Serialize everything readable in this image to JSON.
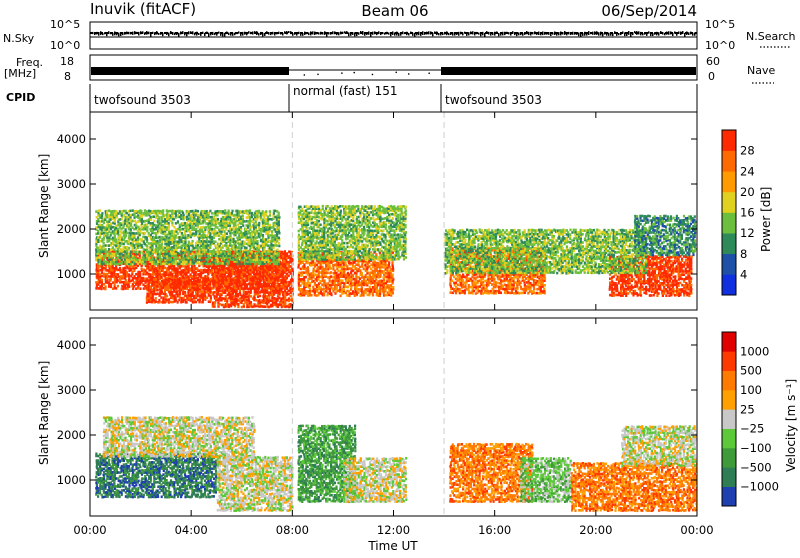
{
  "header": {
    "station": "Inuvik (fitACF)",
    "beam": "Beam 06",
    "date": "06/Sep/2014"
  },
  "status_panels": {
    "nsky_label": "N.Sky",
    "nsky_ticks": [
      "10^5",
      "10^0"
    ],
    "nsearch_label": "N.Search",
    "nsearch_ticks": [
      "10^5",
      "10^0"
    ],
    "freq_label_line1": "Freq.",
    "freq_label_line2": "[MHz]",
    "freq_ticks": [
      "18",
      "8"
    ],
    "nave_label": "Nave",
    "nave_ticks": [
      "60",
      "0"
    ],
    "cpid_label": "CPID",
    "cpid_segments": [
      {
        "label": "twofsound 3503",
        "start_hour": 0,
        "end_hour": 8
      },
      {
        "label": "normal (fast) 151",
        "start_hour": 8,
        "end_hour": 14
      },
      {
        "label": "twofsound 3503",
        "start_hour": 14,
        "end_hour": 24
      }
    ]
  },
  "chart_data": [
    {
      "type": "heatmap",
      "name": "Power",
      "ylabel": "Slant Range [km]",
      "ylim": [
        200,
        4600
      ],
      "y_ticks": [
        "1000",
        "2000",
        "3000",
        "4000"
      ],
      "colorbar_label": "Power [dB]",
      "colorbar_ticks": [
        "4",
        "8",
        "12",
        "16",
        "20",
        "24",
        "28"
      ],
      "colorbar_colors": [
        "#1030e0",
        "#1f50a8",
        "#2f8a5a",
        "#6cbf3c",
        "#e0d020",
        "#ff9a00",
        "#ff6a00",
        "#ff2a00"
      ],
      "blobs": [
        {
          "x0": 0.2,
          "x1": 7.8,
          "y0": 650,
          "y1": 1500,
          "level": 7
        },
        {
          "x0": 2.2,
          "x1": 4.8,
          "y0": 350,
          "y1": 900,
          "level": 7
        },
        {
          "x0": 4.8,
          "x1": 8.0,
          "y0": 250,
          "y1": 1500,
          "level": 7
        },
        {
          "x0": 8.2,
          "x1": 12.0,
          "y0": 500,
          "y1": 1500,
          "level": 6
        },
        {
          "x0": 14.2,
          "x1": 18.0,
          "y0": 550,
          "y1": 1600,
          "level": 6
        },
        {
          "x0": 20.5,
          "x1": 23.8,
          "y0": 500,
          "y1": 1400,
          "level": 7
        },
        {
          "x0": 0.2,
          "x1": 7.5,
          "y0": 1200,
          "y1": 2400,
          "level": 3
        },
        {
          "x0": 8.2,
          "x1": 12.5,
          "y0": 1300,
          "y1": 2500,
          "level": 3
        },
        {
          "x0": 14.0,
          "x1": 22.0,
          "y0": 1000,
          "y1": 2000,
          "level": 3
        },
        {
          "x0": 21.5,
          "x1": 23.9,
          "y0": 1400,
          "y1": 2300,
          "level": 2
        }
      ]
    },
    {
      "type": "heatmap",
      "name": "Velocity",
      "xlabel": "Time UT",
      "ylabel": "Slant Range [km]",
      "x_ticks": [
        "00:00",
        "04:00",
        "08:00",
        "12:00",
        "16:00",
        "20:00",
        "00:00"
      ],
      "ylim": [
        200,
        4600
      ],
      "y_ticks": [
        "1000",
        "2000",
        "3000",
        "4000"
      ],
      "colorbar_label": "Velocity [m s⁻¹]",
      "colorbar_ticks": [
        "1000",
        "500",
        "100",
        "25",
        "−25",
        "−100",
        "−500",
        "−1000"
      ],
      "colorbar_colors": [
        "#1e3fb0",
        "#2e7d55",
        "#3f9a3a",
        "#5cc83a",
        "#c8c8c8",
        "#ffa000",
        "#ff7a00",
        "#ff3a00",
        "#e00000"
      ],
      "blobs": [
        {
          "x0": 0.2,
          "x1": 5.0,
          "y0": 600,
          "y1": 1600,
          "level": 1
        },
        {
          "x0": 0.5,
          "x1": 6.5,
          "y0": 1500,
          "y1": 2400,
          "level": 4
        },
        {
          "x0": 5.0,
          "x1": 8.0,
          "y0": 300,
          "y1": 1500,
          "level": 4
        },
        {
          "x0": 8.2,
          "x1": 10.5,
          "y0": 500,
          "y1": 2200,
          "level": 2
        },
        {
          "x0": 10.0,
          "x1": 12.5,
          "y0": 500,
          "y1": 1500,
          "level": 4
        },
        {
          "x0": 14.2,
          "x1": 17.5,
          "y0": 500,
          "y1": 1800,
          "level": 6
        },
        {
          "x0": 17.0,
          "x1": 19.0,
          "y0": 500,
          "y1": 1500,
          "level": 3
        },
        {
          "x0": 19.0,
          "x1": 24.0,
          "y0": 300,
          "y1": 1400,
          "level": 6
        },
        {
          "x0": 21.0,
          "x1": 23.9,
          "y0": 1300,
          "y1": 2200,
          "level": 4
        }
      ]
    }
  ]
}
